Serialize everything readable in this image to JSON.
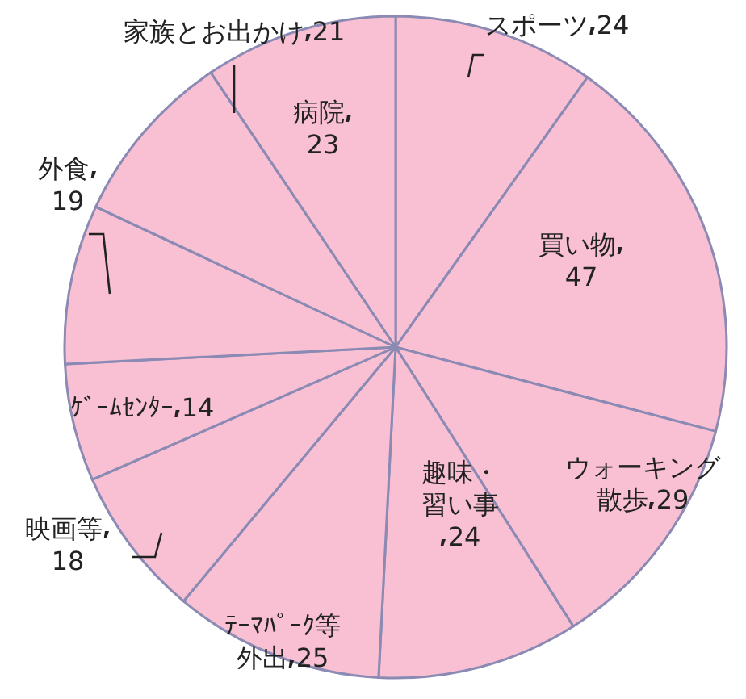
{
  "chart_data": {
    "type": "pie",
    "categories": [
      "スポーツ",
      "買い物",
      "ウォーキング散歩",
      "趣味・習い事",
      "ﾃｰﾏﾊﾟｰｸ等外出",
      "映画等",
      "ｹﾞｰﾑｾﾝﾀｰ",
      "外食",
      "家族とお出かけ",
      "病院"
    ],
    "values": [
      24,
      47,
      29,
      24,
      25,
      18,
      14,
      19,
      21,
      23
    ],
    "colors": [
      "#f8c0d2",
      "#f8c0d2",
      "#f8c0d2",
      "#f8c0d2",
      "#f8c0d2",
      "#f8c0d2",
      "#f8c0d2",
      "#f8c0d2",
      "#f8c0d2",
      "#f8c0d2"
    ],
    "data_labels": true
  }
}
